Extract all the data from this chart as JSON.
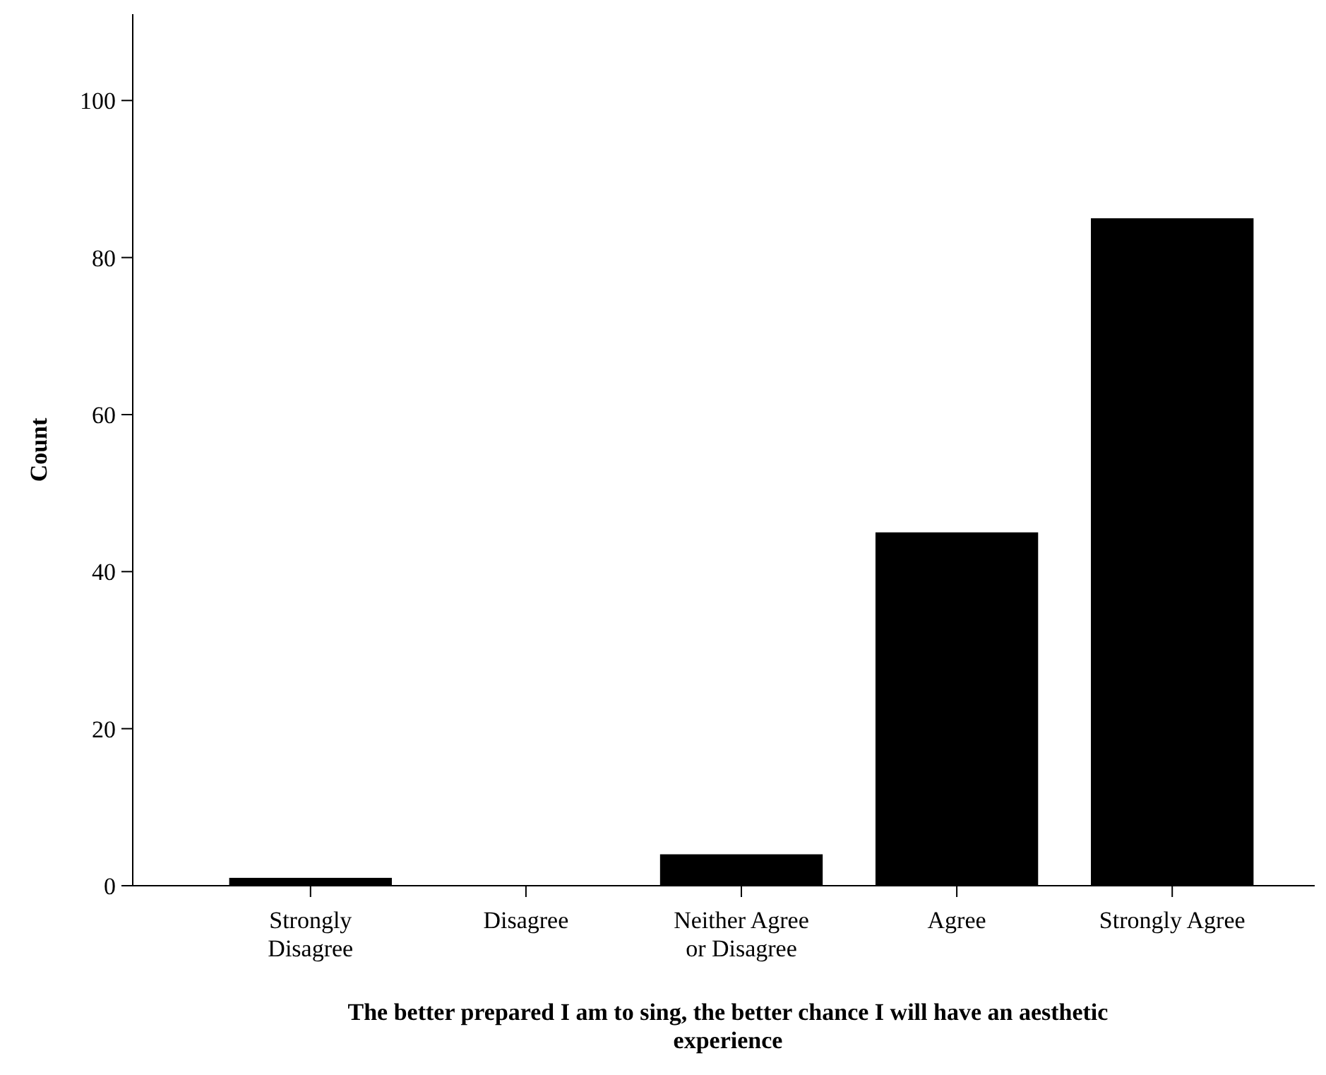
{
  "chart_data": {
    "type": "bar",
    "xlabel": "The better prepared I am to sing, the better chance I will have an aesthetic experience",
    "ylabel": "Count",
    "categories": [
      "Strongly Disagree",
      "Disagree",
      "Neither Agree or Disagree",
      "Agree",
      "Strongly Agree"
    ],
    "values": [
      1,
      0,
      4,
      45,
      85
    ],
    "color": "#000000",
    "ylim": [
      0,
      111
    ],
    "yticks": [
      0,
      20,
      40,
      60,
      80,
      100
    ],
    "grid": false
  }
}
